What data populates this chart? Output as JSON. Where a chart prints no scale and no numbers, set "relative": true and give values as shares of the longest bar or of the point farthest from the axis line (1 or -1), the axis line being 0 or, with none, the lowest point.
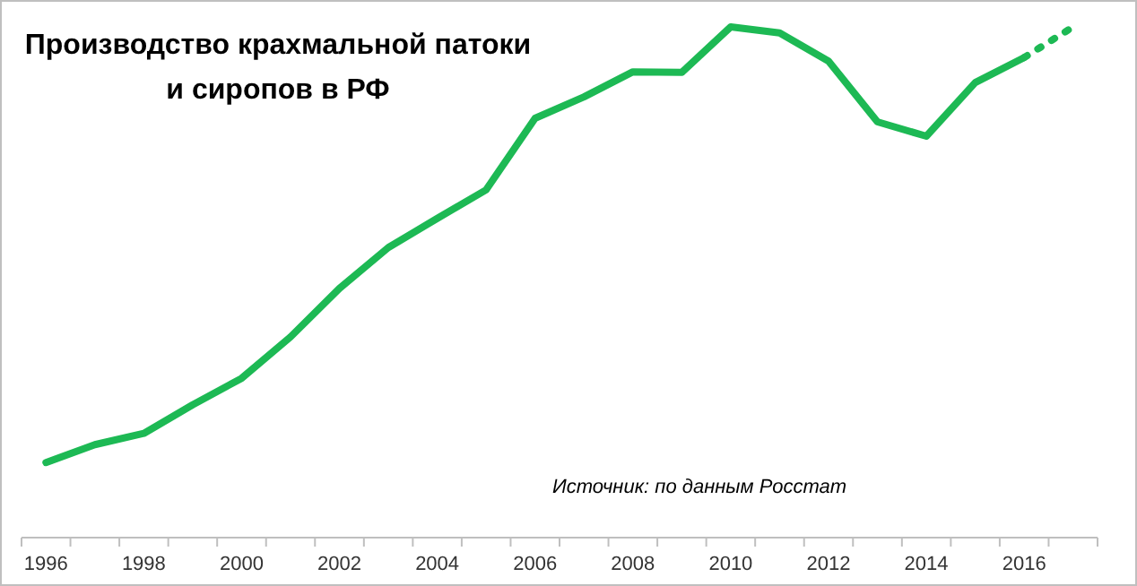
{
  "chart_data": {
    "type": "line",
    "title": "Производство крахмальной патоки\nи сиропов в РФ",
    "relative": true,
    "categories": [
      "1996",
      null,
      "1998",
      null,
      "2000",
      null,
      "2002",
      null,
      "2004",
      null,
      "2006",
      null,
      "2008",
      null,
      "2010",
      null,
      "2012",
      null,
      "2014",
      null,
      "2016",
      null
    ],
    "series": [
      {
        "color": "#1db954",
        "line_style": "solid",
        "values": [
          0.147,
          0.182,
          0.204,
          0.26,
          0.312,
          0.393,
          0.488,
          0.568,
          0.625,
          0.681,
          0.821,
          0.863,
          0.912,
          0.911,
          1,
          0.988,
          0.933,
          0.814,
          0.786,
          0.891,
          0.94,
          null
        ]
      },
      {
        "color": "#1db954",
        "line_style": "dotted",
        "values": [
          null,
          null,
          null,
          null,
          null,
          null,
          null,
          null,
          null,
          null,
          null,
          null,
          null,
          null,
          null,
          null,
          null,
          null,
          null,
          null,
          0.94,
          1
        ]
      }
    ],
    "annotations": [
      "Источник: по данным Росстат"
    ]
  }
}
